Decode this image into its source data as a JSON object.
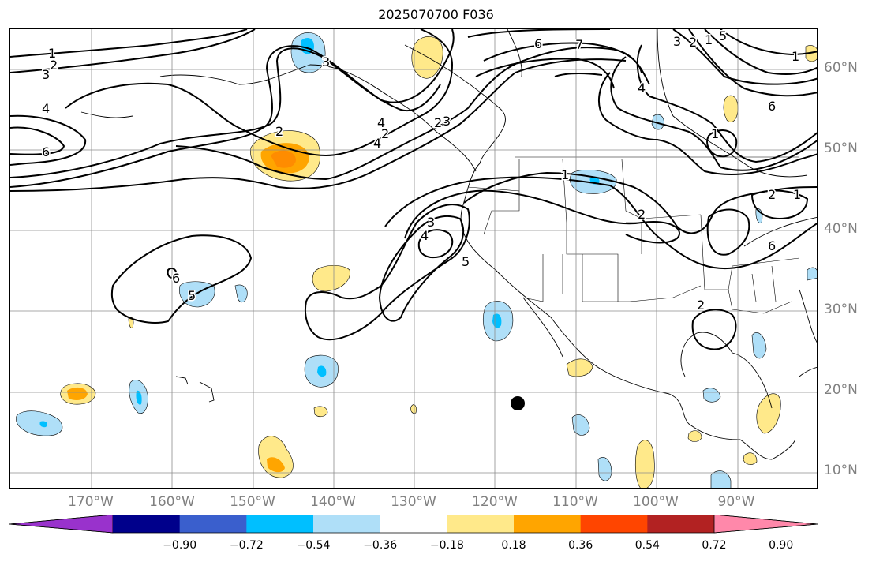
{
  "title": "2025070700 F036",
  "lon_labels": [
    "170°W",
    "160°W",
    "150°W",
    "140°W",
    "130°W",
    "120°W",
    "110°W",
    "100°W",
    "90°W"
  ],
  "lat_labels": [
    "60°N",
    "50°N",
    "40°N",
    "30°N",
    "20°N",
    "10°N"
  ],
  "colorbar": {
    "ticks": [
      "−0.90",
      "−0.72",
      "−0.54",
      "−0.36",
      "−0.18",
      "0.18",
      "0.36",
      "0.54",
      "0.72",
      "0.90"
    ],
    "colors": [
      "#9932cc",
      "#00008b",
      "#3a5fcd",
      "#00bfff",
      "#afdff8",
      "#ffffff",
      "#ffe98a",
      "#ffa500",
      "#ff4500",
      "#b22222",
      "#ff88aa"
    ]
  },
  "contour_labels": [
    "1",
    "2",
    "3",
    "4",
    "6",
    "1",
    "2",
    "3",
    "4",
    "5",
    "6",
    "5",
    "6",
    "7",
    "4",
    "3",
    "2",
    "1",
    "5",
    "6",
    "1",
    "2",
    "1",
    "2",
    "3",
    "4",
    "2",
    "2",
    "1",
    "4",
    "3",
    "6",
    "2"
  ],
  "marker": "storm-position-dot"
}
